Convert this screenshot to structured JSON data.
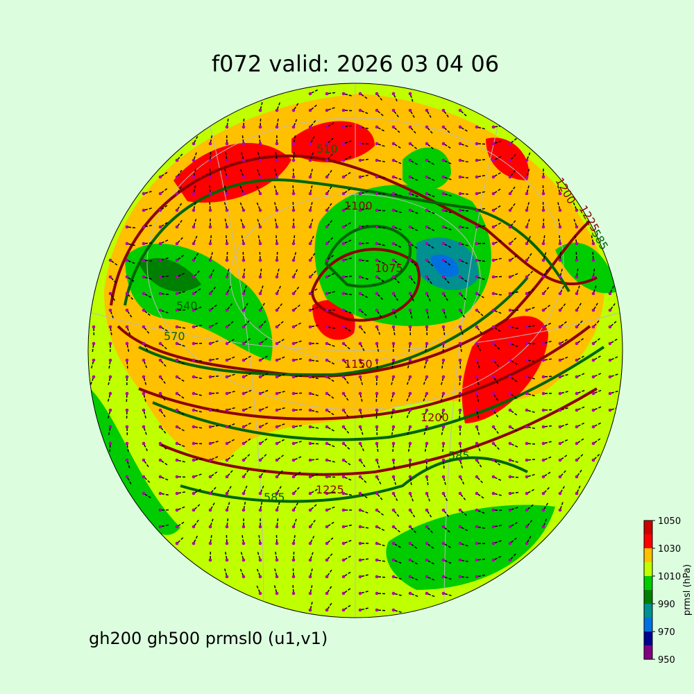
{
  "title": "f072 valid:   2026 03 04 06",
  "caption": "gh200 gh500 prmsl0 (u1,v1)",
  "colorbar": {
    "label": "prmsl (hPa)",
    "lim": [
      950,
      1050
    ],
    "ticks": [
      950,
      970,
      990,
      1010,
      1030,
      1050
    ],
    "levels": [
      950,
      960,
      970,
      980,
      990,
      1000,
      1010,
      1020,
      1030,
      1040,
      1050
    ],
    "colors": [
      "#800080",
      "#000090",
      "#0070e0",
      "#009090",
      "#008000",
      "#00cc00",
      "#bfff00",
      "#ffc000",
      "#ff0000",
      "#cc0000"
    ]
  },
  "contour_labels": [
    "1100",
    "1150",
    "1200",
    "1225",
    "1075",
    "510",
    "540",
    "570",
    "585",
    "585",
    "1225",
    "585",
    "1200"
  ]
}
